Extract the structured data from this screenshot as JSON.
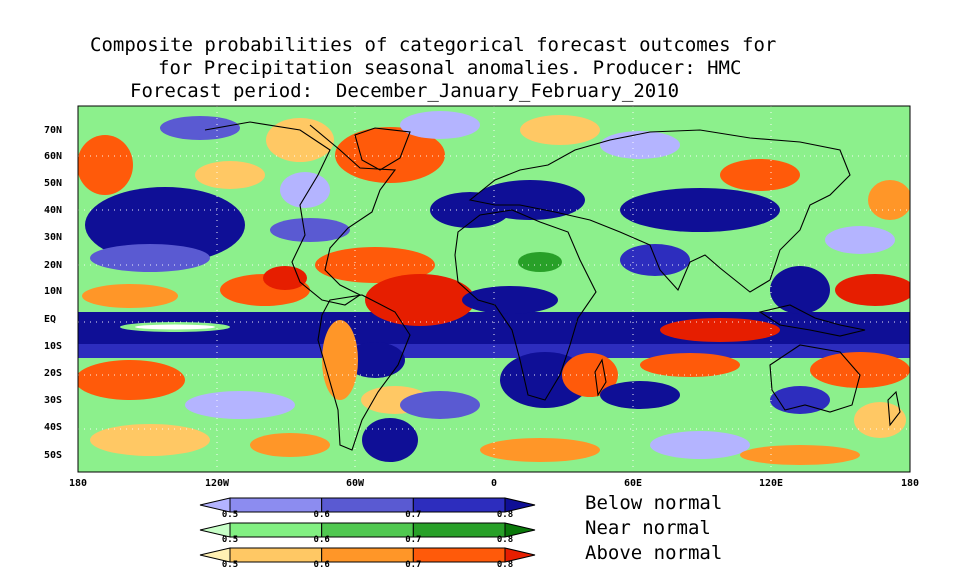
{
  "title": {
    "line1": "Composite probabilities of categorical forecast outcomes for",
    "line2": "for Precipitation seasonal anomalies. Producer: HMC",
    "line3": "Forecast period:  December_January_February_2010"
  },
  "map": {
    "lat_labels": [
      "70N",
      "60N",
      "50N",
      "40N",
      "30N",
      "20N",
      "10N",
      "EQ",
      "10S",
      "20S",
      "30S",
      "40S",
      "50S"
    ],
    "lon_labels": [
      "180",
      "120W",
      "60W",
      "0",
      "60E",
      "120E",
      "180"
    ]
  },
  "legend": {
    "categories": [
      {
        "label": "Below normal",
        "ticks": [
          "0.5",
          "0.6",
          "0.7",
          "0.8"
        ],
        "colors": [
          "#b4b4ff",
          "#8c8cf0",
          "#5a5ad2",
          "#2d2dbe",
          "#0f0f96"
        ]
      },
      {
        "label": "Near normal",
        "ticks": [
          "0.5",
          "0.6",
          "0.7",
          "0.8"
        ],
        "colors": [
          "#c8ffc8",
          "#82f082",
          "#50c850",
          "#28a028",
          "#0a780a"
        ]
      },
      {
        "label": "Above normal",
        "ticks": [
          "0.5",
          "0.6",
          "0.7",
          "0.8"
        ],
        "colors": [
          "#fff0b4",
          "#ffc864",
          "#ff9628",
          "#ff5a0a",
          "#e61e00"
        ]
      }
    ]
  }
}
